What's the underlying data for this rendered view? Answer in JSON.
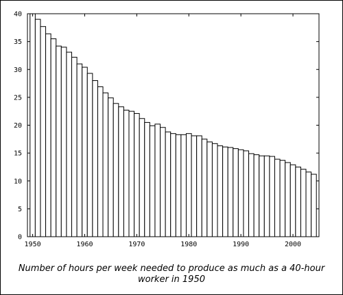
{
  "chart_data": {
    "type": "bar",
    "title": "",
    "xlabel": "",
    "ylabel": "",
    "caption_lines": [
      "Number of hours per week needed to produce as much as a 40-hour",
      "worker in 1950"
    ],
    "xlim": [
      1949,
      2005
    ],
    "ylim": [
      0,
      40
    ],
    "x_ticks": [
      1950,
      1960,
      1970,
      1980,
      1990,
      2000
    ],
    "y_ticks": [
      0,
      5,
      10,
      15,
      20,
      25,
      30,
      35,
      40
    ],
    "grid": false,
    "legend": "none",
    "bar_color": "#ffffff",
    "edge_color": "#000000",
    "x": [
      1950,
      1951,
      1952,
      1953,
      1954,
      1955,
      1956,
      1957,
      1958,
      1959,
      1960,
      1961,
      1962,
      1963,
      1964,
      1965,
      1966,
      1967,
      1968,
      1969,
      1970,
      1971,
      1972,
      1973,
      1974,
      1975,
      1976,
      1977,
      1978,
      1979,
      1980,
      1981,
      1982,
      1983,
      1984,
      1985,
      1986,
      1987,
      1988,
      1989,
      1990,
      1991,
      1992,
      1993,
      1994,
      1995,
      1996,
      1997,
      1998,
      1999,
      2000,
      2001,
      2002,
      2003,
      2004
    ],
    "values": [
      40.0,
      39.0,
      37.7,
      36.4,
      35.5,
      34.2,
      34.0,
      33.1,
      32.2,
      31.0,
      30.4,
      29.3,
      28.0,
      26.9,
      25.8,
      24.9,
      23.9,
      23.3,
      22.7,
      22.5,
      22.1,
      21.2,
      20.5,
      19.9,
      20.2,
      19.6,
      18.8,
      18.5,
      18.3,
      18.3,
      18.5,
      18.1,
      18.1,
      17.5,
      17.0,
      16.7,
      16.3,
      16.1,
      16.0,
      15.8,
      15.6,
      15.4,
      14.9,
      14.7,
      14.5,
      14.5,
      14.4,
      13.9,
      13.7,
      13.3,
      12.9,
      12.5,
      12.1,
      11.6,
      11.2
    ]
  }
}
